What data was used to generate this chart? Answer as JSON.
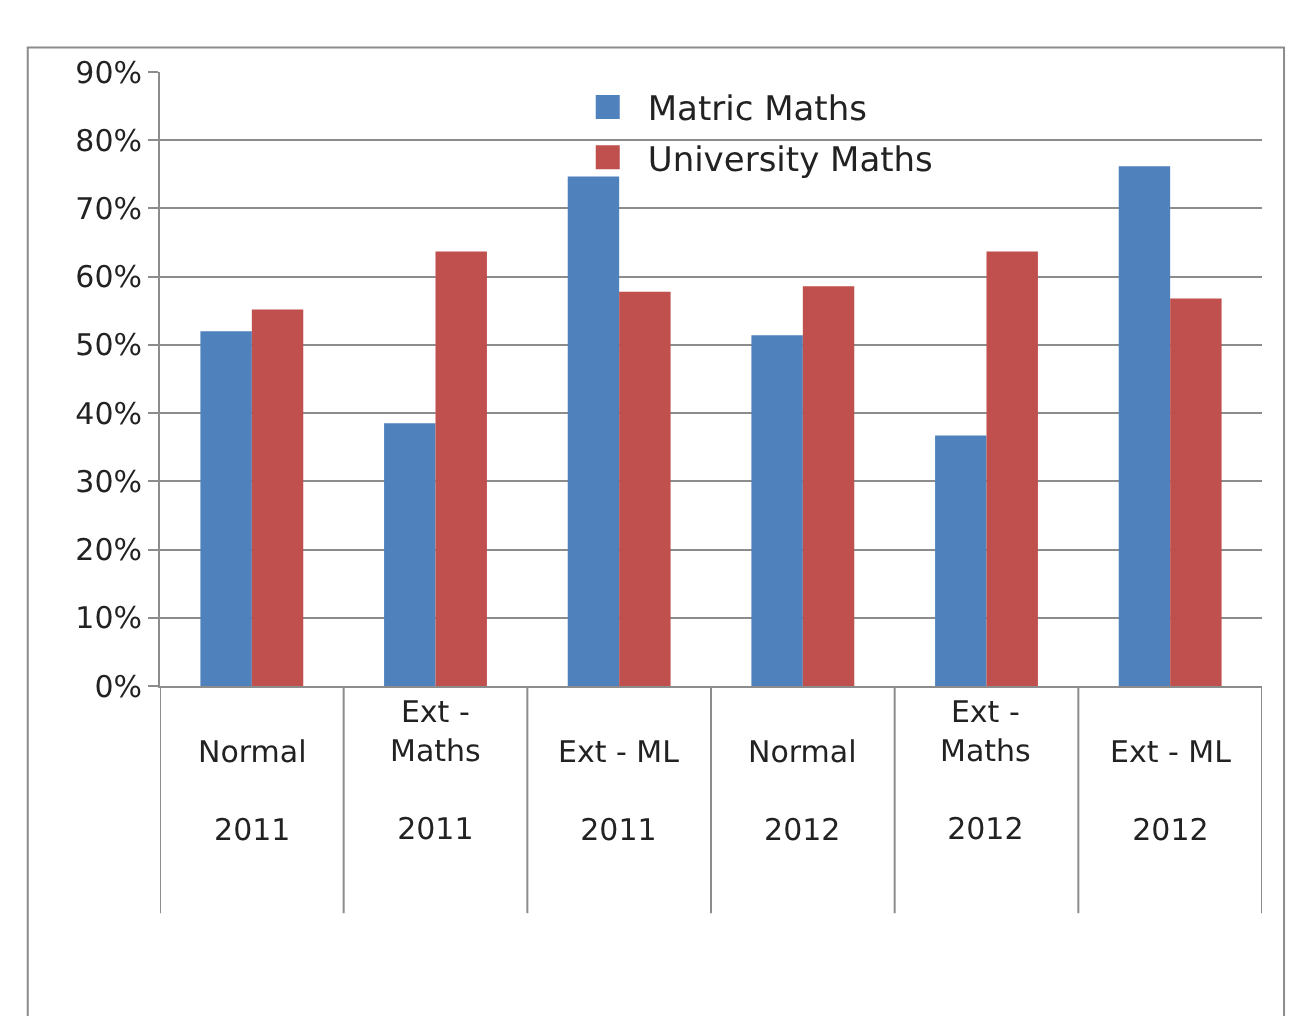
{
  "chart_data": {
    "type": "bar",
    "categories": [
      "Normal\n2011",
      "Ext - Maths\n2011",
      "Ext - ML\n2011",
      "Normal\n2012",
      "Ext - Maths\n2012",
      "Ext - ML\n2012"
    ],
    "series": [
      {
        "name": "Matric Maths",
        "color": "#4f81bd",
        "values": [
          52,
          38.5,
          74.7,
          51.4,
          36.7,
          76.2
        ]
      },
      {
        "name": "University Maths",
        "color": "#c0504d",
        "values": [
          55.2,
          63.7,
          57.8,
          58.6,
          63.7,
          56.8
        ]
      }
    ],
    "ylim": [
      0,
      90
    ],
    "yticks": [
      {
        "value": 0,
        "label": "0%"
      },
      {
        "value": 10,
        "label": "10%"
      },
      {
        "value": 20,
        "label": "20%"
      },
      {
        "value": 30,
        "label": "30%"
      },
      {
        "value": 40,
        "label": "40%"
      },
      {
        "value": 50,
        "label": "50%"
      },
      {
        "value": 60,
        "label": "60%"
      },
      {
        "value": 70,
        "label": "70%"
      },
      {
        "value": 80,
        "label": "80%"
      },
      {
        "value": 90,
        "label": "90%"
      }
    ],
    "grid": "y",
    "legend": "top"
  }
}
